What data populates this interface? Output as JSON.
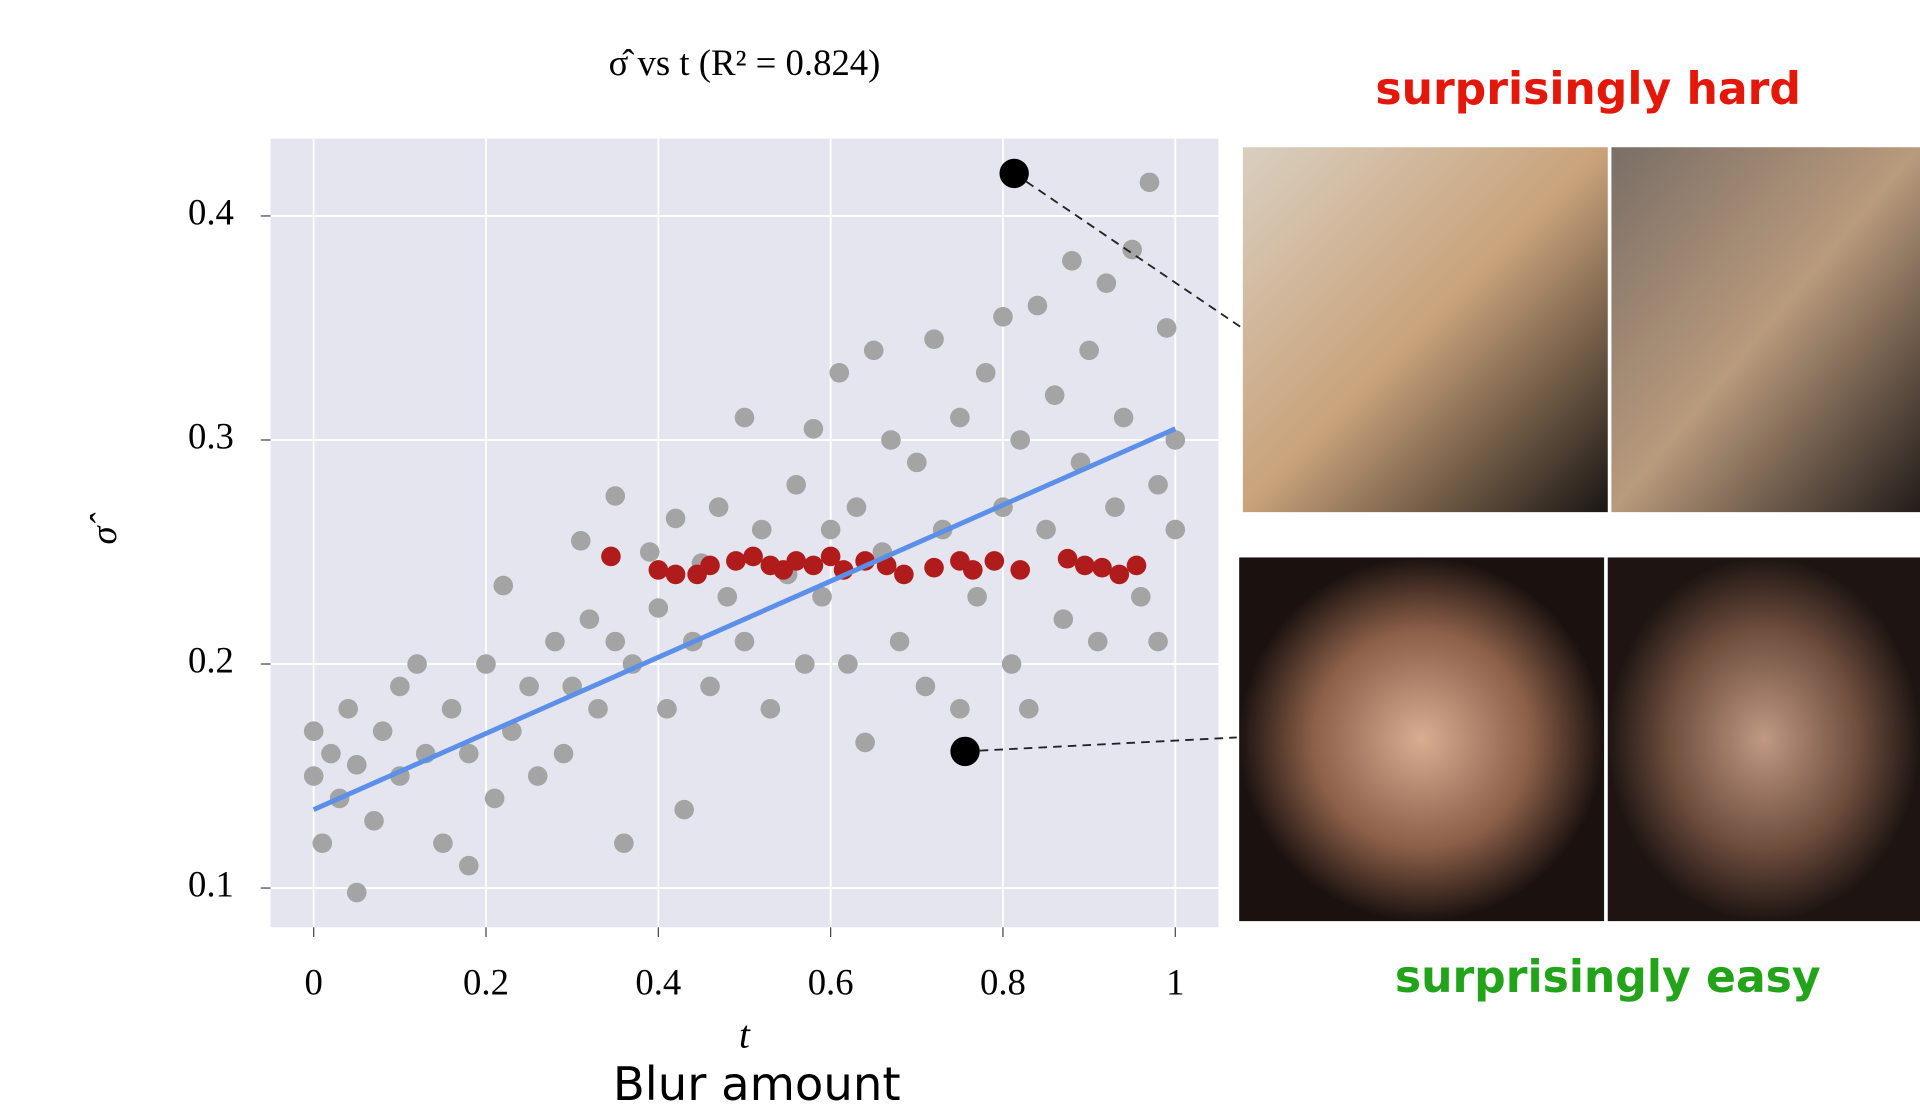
{
  "chart_data": {
    "type": "scatter",
    "title": "σ̂ vs t (R² = 0.824)",
    "x_label": "t",
    "y_label": "σ̂",
    "caption": "Blur amount",
    "annotations": [
      "surprisingly hard",
      "surprisingly easy"
    ],
    "xlim": [
      -0.05,
      1.05
    ],
    "ylim": [
      0.0825,
      0.4345
    ],
    "xticks": [
      0,
      0.2,
      0.4,
      0.6,
      0.8,
      1
    ],
    "yticks": [
      0.1,
      0.2,
      0.3,
      0.4
    ],
    "grid": true,
    "background": "#e5e5ef",
    "series": [
      {
        "color": "#a4a4a4",
        "x": [
          0,
          0,
          0.01,
          0.02,
          0.03,
          0.04,
          0.05,
          0.05,
          0.07,
          0.08,
          0.1,
          0.1,
          0.12,
          0.13,
          0.15,
          0.16,
          0.18,
          0.18,
          0.2,
          0.21,
          0.22,
          0.23,
          0.25,
          0.26,
          0.28,
          0.29,
          0.3,
          0.31,
          0.32,
          0.33,
          0.35,
          0.35,
          0.36,
          0.37,
          0.39,
          0.4,
          0.41,
          0.42,
          0.43,
          0.44,
          0.45,
          0.46,
          0.47,
          0.48,
          0.5,
          0.5,
          0.52,
          0.53,
          0.55,
          0.56,
          0.57,
          0.58,
          0.59,
          0.6,
          0.61,
          0.62,
          0.63,
          0.64,
          0.65,
          0.66,
          0.67,
          0.68,
          0.7,
          0.71,
          0.72,
          0.73,
          0.75,
          0.75,
          0.77,
          0.78,
          0.8,
          0.8,
          0.81,
          0.82,
          0.83,
          0.84,
          0.85,
          0.86,
          0.87,
          0.88,
          0.89,
          0.9,
          0.91,
          0.92,
          0.93,
          0.94,
          0.95,
          0.96,
          0.97,
          0.98,
          0.99,
          1,
          1,
          0.98
        ],
        "values": [
          0.15,
          0.17,
          0.12,
          0.16,
          0.14,
          0.18,
          0.098,
          0.155,
          0.13,
          0.17,
          0.15,
          0.19,
          0.2,
          0.16,
          0.12,
          0.18,
          0.11,
          0.16,
          0.2,
          0.14,
          0.235,
          0.17,
          0.19,
          0.15,
          0.21,
          0.16,
          0.19,
          0.255,
          0.22,
          0.18,
          0.275,
          0.21,
          0.12,
          0.2,
          0.25,
          0.225,
          0.18,
          0.265,
          0.135,
          0.21,
          0.245,
          0.19,
          0.27,
          0.23,
          0.21,
          0.31,
          0.26,
          0.18,
          0.24,
          0.28,
          0.2,
          0.305,
          0.23,
          0.26,
          0.33,
          0.2,
          0.27,
          0.165,
          0.34,
          0.25,
          0.3,
          0.21,
          0.29,
          0.19,
          0.345,
          0.26,
          0.18,
          0.31,
          0.23,
          0.33,
          0.27,
          0.355,
          0.2,
          0.3,
          0.18,
          0.36,
          0.26,
          0.32,
          0.22,
          0.38,
          0.29,
          0.34,
          0.21,
          0.37,
          0.27,
          0.31,
          0.385,
          0.23,
          0.415,
          0.28,
          0.35,
          0.26,
          0.3,
          0.21
        ]
      },
      {
        "color": "#b01c1c",
        "x": [
          0.345,
          0.4,
          0.42,
          0.445,
          0.46,
          0.49,
          0.51,
          0.53,
          0.545,
          0.56,
          0.58,
          0.6,
          0.615,
          0.64,
          0.665,
          0.685,
          0.72,
          0.75,
          0.765,
          0.79,
          0.82,
          0.875,
          0.895,
          0.915,
          0.935,
          0.955
        ],
        "values": [
          0.248,
          0.242,
          0.24,
          0.24,
          0.244,
          0.246,
          0.248,
          0.244,
          0.242,
          0.246,
          0.244,
          0.248,
          0.242,
          0.246,
          0.244,
          0.24,
          0.243,
          0.246,
          0.242,
          0.246,
          0.242,
          0.247,
          0.244,
          0.243,
          0.24,
          0.244
        ]
      },
      {
        "color": "#000000",
        "x": [
          0.813,
          0.756
        ],
        "values": [
          0.419,
          0.161
        ]
      }
    ],
    "fit_line": {
      "color": "#5b8fe8",
      "x": [
        0,
        1
      ],
      "values": [
        0.135,
        0.305
      ]
    }
  }
}
